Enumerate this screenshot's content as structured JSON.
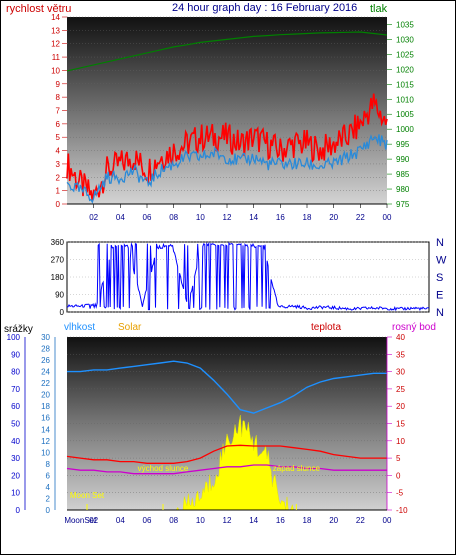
{
  "title": "24 hour graph day : 16 February 2016",
  "colors": {
    "wind": "#ff0000",
    "wind_avg": "#2a8ad8",
    "pressure": "#008000",
    "direction": "#0000ff",
    "rain": "#0000ff",
    "humidity": "#1e90ff",
    "solar": "#ffff00",
    "temperature": "#ff0000",
    "dewpoint": "#cc00cc",
    "hour_axis": "#00008b",
    "moon": "#ffff00"
  },
  "chart_data": [
    {
      "type": "line",
      "panel": "wind-pressure",
      "left_axis_label": "rychlost větru",
      "right_axis_label": "tlak",
      "left_ylim": [
        0,
        14
      ],
      "left_ticks": [
        "0",
        "1",
        "2",
        "3",
        "4",
        "5",
        "6",
        "7",
        "8",
        "9",
        "10",
        "11",
        "12",
        "13",
        "14"
      ],
      "right_ylim": [
        975,
        1037.5
      ],
      "right_ticks": [
        "975",
        "980",
        "985",
        "990",
        "995",
        "1000",
        "1005",
        "1010",
        "1015",
        "1020",
        "1025",
        "1030",
        "1035"
      ],
      "x_ticks": [
        "02",
        "04",
        "06",
        "08",
        "10",
        "12",
        "14",
        "16",
        "18",
        "20",
        "22",
        "00"
      ],
      "x_hours": [
        0,
        1,
        2,
        3,
        4,
        5,
        6,
        7,
        8,
        9,
        10,
        11,
        12,
        13,
        14,
        15,
        16,
        17,
        18,
        19,
        20,
        21,
        22,
        23,
        24
      ],
      "series": [
        {
          "role": "wind_gust",
          "values": [
            3.0,
            1.5,
            0.5,
            2.5,
            3.0,
            3.5,
            2.5,
            3.5,
            4.0,
            4.5,
            5.0,
            5.0,
            5.0,
            4.5,
            5.0,
            4.5,
            4.0,
            4.5,
            4.5,
            4.0,
            4.5,
            5.0,
            6.0,
            7.5,
            6.0
          ]
        },
        {
          "role": "wind_avg",
          "values": [
            1.5,
            1.0,
            0.5,
            2.0,
            2.0,
            2.5,
            1.5,
            2.5,
            3.0,
            3.5,
            3.5,
            3.8,
            3.5,
            3.2,
            3.5,
            3.0,
            3.0,
            3.0,
            3.0,
            2.8,
            3.0,
            3.5,
            4.0,
            5.0,
            4.5
          ]
        },
        {
          "role": "pressure",
          "values": [
            1019.5,
            1020.5,
            1021.5,
            1022.5,
            1023.5,
            1024.5,
            1025.5,
            1026.5,
            1027.5,
            1028.2,
            1029,
            1029.5,
            1030,
            1030.5,
            1031,
            1031.3,
            1031.6,
            1031.8,
            1032,
            1032.2,
            1032.3,
            1032.4,
            1032.5,
            1032,
            1031.5
          ]
        }
      ]
    },
    {
      "type": "scatter",
      "panel": "wind-direction",
      "ylim": [
        0,
        360
      ],
      "left_ticks": [
        "0",
        "90",
        "180",
        "270",
        "360"
      ],
      "right_ticks": [
        "N",
        "W",
        "S",
        "E",
        "N"
      ],
      "x_hours": [
        0,
        1,
        2,
        3,
        4,
        5,
        6,
        7,
        8,
        9,
        10,
        11,
        12,
        13,
        14,
        15,
        16,
        17,
        18,
        19,
        20,
        21,
        22,
        23,
        24
      ],
      "series": [
        {
          "role": "direction",
          "values": [
            30,
            30,
            40,
            330,
            345,
            35,
            330,
            340,
            30,
            350,
            340,
            350,
            330,
            340,
            25,
            30,
            20,
            25,
            20,
            15,
            20,
            20,
            15,
            20,
            15
          ]
        }
      ]
    },
    {
      "type": "line",
      "panel": "temp-humidity-solar",
      "rain_axis_label": "srážky",
      "humidity_axis_label": "vlhkost",
      "solar_axis_label": "Solar",
      "temperature_label": "teplota",
      "dewpoint_label": "rosný bod",
      "rain_ticks": [
        "0",
        "10",
        "20",
        "30",
        "40",
        "50",
        "60",
        "70",
        "80",
        "90",
        "100"
      ],
      "humidity_ticks": [
        "0",
        "2",
        "4",
        "6",
        "8",
        "10",
        "12",
        "14",
        "16",
        "18",
        "20",
        "22",
        "24",
        "26",
        "28",
        "30"
      ],
      "temp_ticks": [
        "-10",
        "-5",
        "0",
        "5",
        "10",
        "15",
        "20",
        "25",
        "30",
        "35",
        "40"
      ],
      "temp_ylim": [
        -10,
        40
      ],
      "humidity_ylim": [
        0,
        100
      ],
      "x_ticks": [
        "02",
        "04",
        "06",
        "08",
        "10",
        "12",
        "14",
        "16",
        "18",
        "20",
        "22",
        "00"
      ],
      "x_hours": [
        0,
        1,
        2,
        3,
        4,
        5,
        6,
        7,
        8,
        9,
        10,
        11,
        12,
        13,
        14,
        15,
        16,
        17,
        18,
        19,
        20,
        21,
        22,
        23,
        24
      ],
      "series": [
        {
          "role": "humidity",
          "values": [
            80,
            80,
            81,
            81,
            82,
            83,
            84,
            85,
            86,
            85,
            82,
            75,
            67,
            58,
            56,
            59,
            62,
            66,
            71,
            74,
            76,
            77,
            78,
            79,
            79
          ]
        },
        {
          "role": "temperature",
          "values": [
            5.5,
            5,
            4.5,
            4.5,
            4,
            4,
            3.5,
            3.5,
            3.5,
            4,
            5,
            7,
            8.5,
            8.7,
            8.5,
            8.5,
            8.5,
            8,
            7.5,
            7,
            6,
            5.5,
            5,
            5,
            5
          ]
        },
        {
          "role": "dewpoint",
          "values": [
            2,
            1.5,
            1.5,
            1,
            1,
            0.5,
            0.5,
            0.5,
            0.5,
            1,
            1.5,
            2,
            2.5,
            2.5,
            3,
            3,
            2.5,
            2.5,
            2,
            2,
            1.5,
            1.5,
            1.5,
            1.5,
            1.5
          ]
        },
        {
          "role": "solar",
          "values": [
            0,
            0,
            0,
            0,
            0,
            0,
            0,
            0,
            0,
            2,
            8,
            18,
            40,
            50,
            40,
            30,
            5,
            0,
            0,
            0,
            0,
            0,
            0,
            0,
            0
          ]
        }
      ],
      "annotations": [
        {
          "text": "východ slunce",
          "hour": 7.2
        },
        {
          "text": "západ slunce",
          "hour": 17.2
        },
        {
          "text": "Moon Set",
          "hour": 1.5
        }
      ],
      "bottom_labels": [
        "MoonSet",
        "02",
        "04",
        "06",
        "08",
        "10",
        "12",
        "14",
        "16",
        "18",
        "20",
        "22",
        "00"
      ]
    }
  ]
}
